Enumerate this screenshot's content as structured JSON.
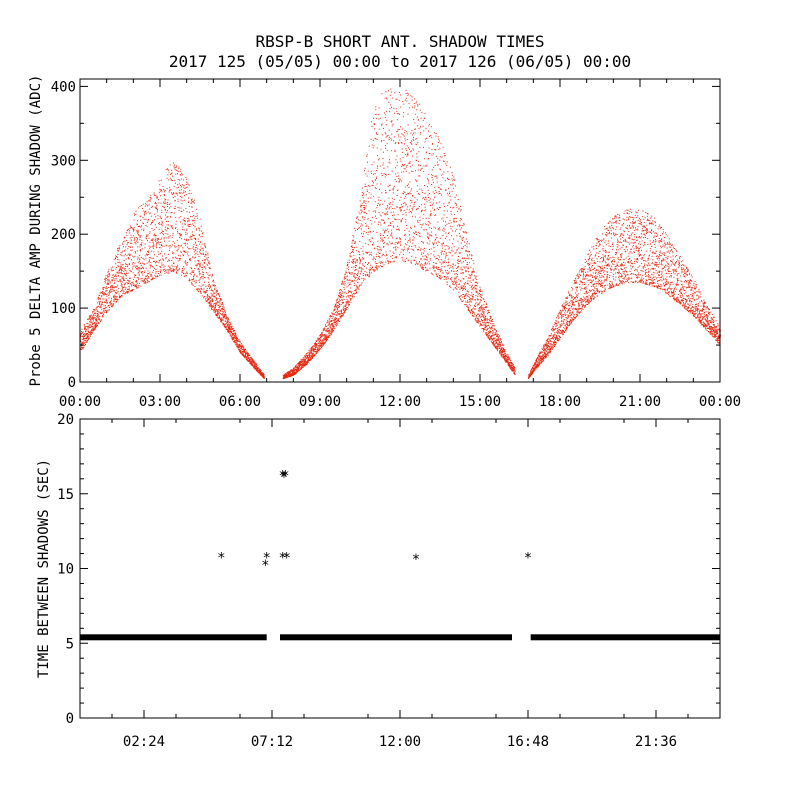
{
  "title_line1": "RBSP-B SHORT ANT. SHADOW TIMES",
  "title_line2": "2017 125 (05/05) 00:00 to 2017 126 (06/05) 00:00",
  "chart_data": [
    {
      "type": "scatter",
      "ylabel": "Probe 5 DELTA AMP DURING SHADOW (ADC)",
      "xlabel": "",
      "xlim": [
        0,
        24
      ],
      "ylim": [
        0,
        410
      ],
      "xtick_labels": [
        "00:00",
        "03:00",
        "06:00",
        "09:00",
        "12:00",
        "15:00",
        "18:00",
        "21:00",
        "00:00"
      ],
      "ytick_labels": [
        "0",
        "100",
        "200",
        "300",
        "400"
      ],
      "color": "#e8270f",
      "series": [
        {
          "segment": "pass-1",
          "x": [
            0.0,
            0.5,
            1.0,
            1.5,
            2.0,
            2.5,
            3.0,
            3.5,
            4.0,
            4.5,
            5.0,
            5.5,
            6.0,
            6.5,
            6.9
          ],
          "lower": [
            40,
            70,
            95,
            115,
            125,
            135,
            145,
            150,
            140,
            120,
            95,
            70,
            40,
            20,
            5
          ],
          "upper": [
            70,
            100,
            150,
            190,
            230,
            250,
            280,
            300,
            280,
            220,
            140,
            90,
            55,
            30,
            10
          ]
        },
        {
          "segment": "pass-2",
          "x": [
            7.6,
            8.0,
            8.5,
            9.0,
            9.5,
            10.0,
            10.5,
            11.0,
            11.5,
            12.0,
            12.5,
            13.0,
            13.5,
            14.0,
            14.5,
            15.0,
            15.5,
            16.0,
            16.3
          ],
          "lower": [
            5,
            10,
            25,
            45,
            70,
            100,
            130,
            150,
            160,
            165,
            160,
            150,
            140,
            125,
            100,
            75,
            50,
            25,
            10
          ],
          "upper": [
            10,
            20,
            40,
            65,
            100,
            160,
            250,
            380,
            400,
            400,
            390,
            360,
            330,
            280,
            200,
            130,
            80,
            40,
            20
          ]
        },
        {
          "segment": "pass-3",
          "x": [
            16.8,
            17.0,
            17.5,
            18.0,
            18.5,
            19.0,
            19.5,
            20.0,
            20.5,
            21.0,
            21.5,
            22.0,
            22.5,
            23.0,
            23.5,
            24.0
          ],
          "lower": [
            5,
            15,
            35,
            60,
            85,
            105,
            120,
            130,
            135,
            135,
            130,
            120,
            105,
            90,
            70,
            50
          ],
          "upper": [
            10,
            25,
            60,
            100,
            140,
            175,
            205,
            225,
            235,
            235,
            225,
            200,
            170,
            140,
            105,
            75
          ]
        }
      ]
    },
    {
      "type": "scatter",
      "ylabel": "TIME BETWEEN SHADOWS (SEC)",
      "xlabel": "",
      "xlim": [
        0,
        24
      ],
      "ylim": [
        0,
        20
      ],
      "xticks": [
        2.4,
        7.2,
        12.0,
        16.8,
        21.6
      ],
      "xtick_labels": [
        "02:24",
        "07:12",
        "12:00",
        "16:48",
        "21:36"
      ],
      "yticks": [
        0,
        5,
        10,
        15,
        20
      ],
      "ytick_labels": [
        "0",
        "5",
        "10",
        "15",
        "20"
      ],
      "marker": "*",
      "color": "#000000",
      "baseline": {
        "y": 5.4,
        "x_ranges": [
          [
            0.0,
            7.0
          ],
          [
            7.5,
            16.2
          ],
          [
            16.9,
            24.0
          ]
        ]
      },
      "points": [
        {
          "x": 5.3,
          "y": 10.8
        },
        {
          "x": 7.0,
          "y": 10.8
        },
        {
          "x": 6.95,
          "y": 10.3
        },
        {
          "x": 7.6,
          "y": 16.3
        },
        {
          "x": 7.7,
          "y": 16.3
        },
        {
          "x": 7.65,
          "y": 16.2
        },
        {
          "x": 7.6,
          "y": 10.8
        },
        {
          "x": 7.75,
          "y": 10.8
        },
        {
          "x": 12.6,
          "y": 10.7
        },
        {
          "x": 16.8,
          "y": 10.8
        }
      ]
    }
  ]
}
